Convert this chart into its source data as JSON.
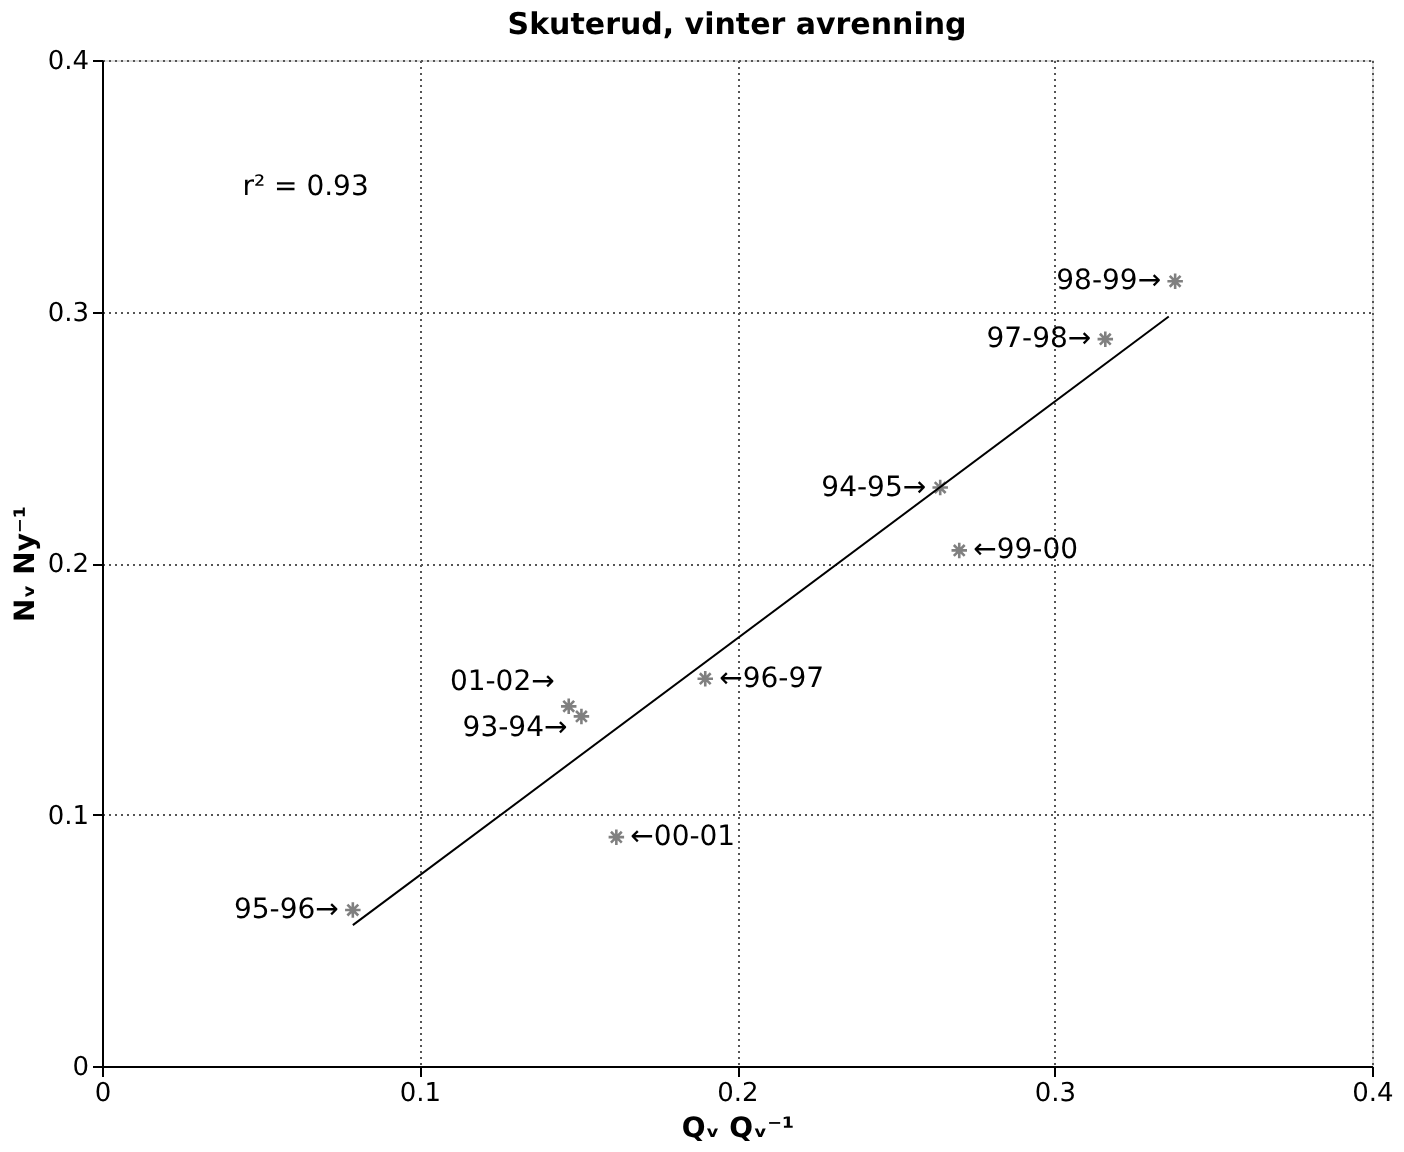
{
  "chart_data": {
    "type": "scatter",
    "title": "Skuterud, vinter avrenning",
    "xlabel": "Qᵥ Qᵥ⁻¹",
    "ylabel": "Nᵥ Ny⁻¹",
    "xlim": [
      0,
      0.4
    ],
    "ylim": [
      0,
      0.4
    ],
    "xticks": [
      0,
      0.1,
      0.2,
      0.3,
      0.4
    ],
    "yticks": [
      0,
      0.1,
      0.2,
      0.3,
      0.4
    ],
    "grid": true,
    "series": [
      {
        "color": "#808080",
        "marker": "cross",
        "x": [
          0.338,
          0.316,
          0.264,
          0.27,
          0.19,
          0.147,
          0.151,
          0.162,
          0.079
        ],
        "values": [
          0.312,
          0.289,
          0.23,
          0.205,
          0.154,
          0.143,
          0.139,
          0.091,
          0.062
        ]
      },
      {
        "type": "line",
        "color": "#000000",
        "marker": "none",
        "line_style": "solid",
        "x": [
          0.079,
          0.336
        ],
        "values": [
          0.056,
          0.298
        ]
      }
    ],
    "annotations": [
      "r² = 0.93",
      {
        "text": "98-99→",
        "x": 0.338,
        "y": 0.312
      },
      {
        "text": "97-98→",
        "x": 0.316,
        "y": 0.289
      },
      {
        "text": "94-95→",
        "x": 0.264,
        "y": 0.23
      },
      {
        "text": "←99-00",
        "x": 0.27,
        "y": 0.205
      },
      {
        "text": "←96-97",
        "x": 0.19,
        "y": 0.154
      },
      {
        "text": "01-02→",
        "x": 0.147,
        "y": 0.143
      },
      {
        "text": "93-94→",
        "x": 0.151,
        "y": 0.139
      },
      {
        "text": "←00-01",
        "x": 0.162,
        "y": 0.091
      },
      {
        "text": "95-96→",
        "x": 0.079,
        "y": 0.062
      }
    ]
  }
}
